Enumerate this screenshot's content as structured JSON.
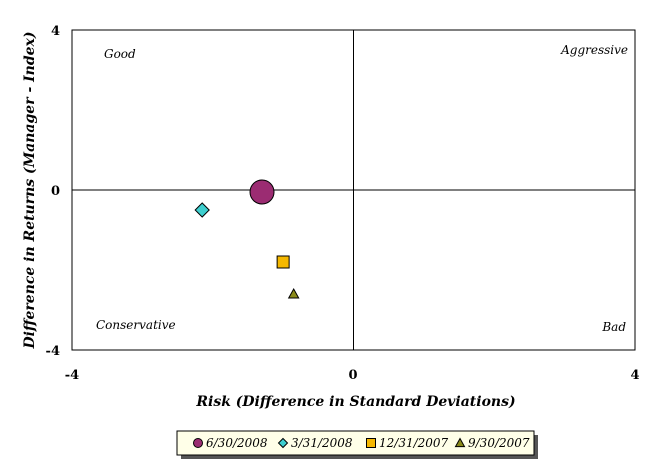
{
  "chart_data": {
    "type": "scatter",
    "xlabel": "Risk (Difference in Standard Deviations)",
    "ylabel": "Difference in Returns (Manager - Index)",
    "xlim": [
      -4,
      4
    ],
    "ylim": [
      -4,
      4
    ],
    "x_ticks": [
      "-4",
      "0",
      "4"
    ],
    "y_ticks": [
      "4",
      "0",
      "-4"
    ],
    "grid": false,
    "legend_position": "bottom",
    "quadrant_labels": {
      "top_left": "Good",
      "top_right": "Aggressive",
      "bottom_left": "Conservative",
      "bottom_right": "Bad"
    },
    "series": [
      {
        "name": "6/30/2008",
        "marker": "circle",
        "color": "#9B2C72",
        "x": -1.3,
        "y": -0.05
      },
      {
        "name": "3/31/2008",
        "marker": "diamond",
        "color": "#3ECFCF",
        "x": -2.15,
        "y": -0.5
      },
      {
        "name": "12/31/2007",
        "marker": "square",
        "color": "#F5B800",
        "x": -1.0,
        "y": -1.8
      },
      {
        "name": "9/30/2007",
        "marker": "triangle",
        "color": "#8A8A1A",
        "x": -0.85,
        "y": -2.6
      }
    ]
  }
}
